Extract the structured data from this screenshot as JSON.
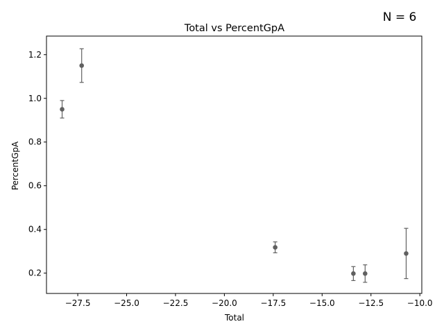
{
  "chart_data": {
    "type": "scatter",
    "title": "Total vs PercentGpA",
    "xlabel": "Total",
    "ylabel": "PercentGpA",
    "annotation": "N = 6",
    "xlim": [
      -29.1,
      -9.9
    ],
    "ylim": [
      0.107,
      1.285
    ],
    "xticks": [
      -27.5,
      -25.0,
      -22.5,
      -20.0,
      -17.5,
      -15.0,
      -12.5,
      -10.0
    ],
    "xtick_labels": [
      "−27.5",
      "−25.0",
      "−22.5",
      "−20.0",
      "−17.5",
      "−15.0",
      "−12.5",
      "−10.0"
    ],
    "yticks": [
      0.2,
      0.4,
      0.6,
      0.8,
      1.0,
      1.2
    ],
    "ytick_labels": [
      "0.2",
      "0.4",
      "0.6",
      "0.8",
      "1.0",
      "1.2"
    ],
    "grid": false,
    "marker_color": "#606060",
    "points": [
      {
        "x": -28.3,
        "y": 0.95,
        "err": 0.04
      },
      {
        "x": -27.3,
        "y": 1.15,
        "err": 0.077
      },
      {
        "x": -17.4,
        "y": 0.318,
        "err": 0.025
      },
      {
        "x": -13.4,
        "y": 0.198,
        "err": 0.032
      },
      {
        "x": -12.8,
        "y": 0.198,
        "err": 0.04
      },
      {
        "x": -10.7,
        "y": 0.29,
        "err": 0.115
      }
    ]
  }
}
